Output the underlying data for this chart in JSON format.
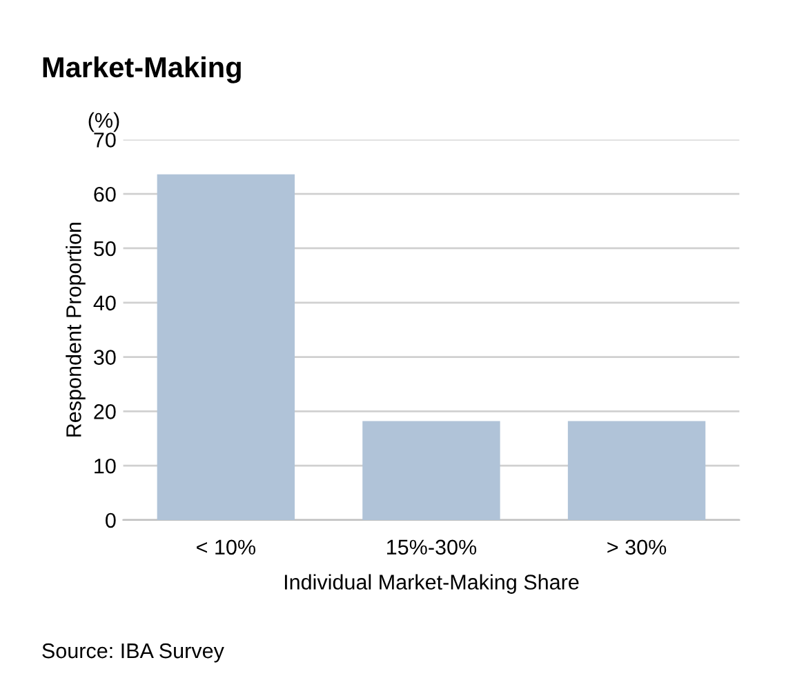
{
  "chart_data": {
    "type": "bar",
    "title": "Market-Making",
    "categories": [
      "< 10%",
      "15%-30%",
      "> 30%"
    ],
    "values": [
      63.6,
      18.2,
      18.2
    ],
    "color": "#b0c3d8",
    "xlabel": "Individual Market-Making Share",
    "ylabel": "Respondent Proportion",
    "ylim": [
      0,
      70
    ],
    "yticks": [
      0,
      10,
      20,
      30,
      40,
      50,
      60,
      70
    ],
    "grid": "y",
    "annotations": [
      "(%)",
      "Source: IBA Survey"
    ]
  }
}
